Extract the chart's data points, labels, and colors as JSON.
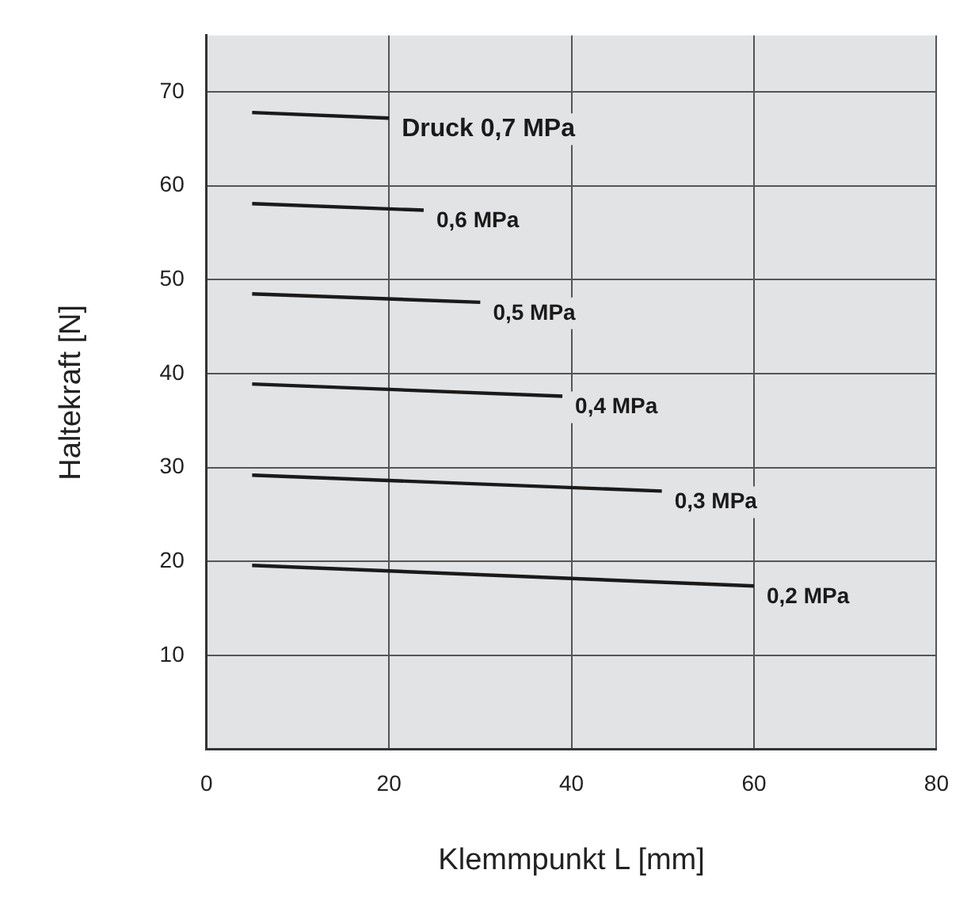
{
  "chart_data": {
    "type": "line",
    "xlabel": "Klemmpunkt L [mm]",
    "ylabel": "Haltekraft [N]",
    "xlim": [
      0,
      80
    ],
    "xticks": [
      0,
      20,
      40,
      60,
      80
    ],
    "ylim": [
      0,
      76
    ],
    "yticks": [
      10,
      20,
      30,
      40,
      50,
      60,
      70
    ],
    "grid": true,
    "legend": false,
    "marker": "none",
    "line_style": "solid",
    "series": [
      {
        "name": "Druck 0,7 MPa",
        "color": "#1a1a1a",
        "x": [
          5,
          20
        ],
        "values": [
          67.8,
          67.2
        ]
      },
      {
        "name": "0,6 MPa",
        "color": "#1a1a1a",
        "x": [
          5,
          23.8
        ],
        "values": [
          58.1,
          57.4
        ]
      },
      {
        "name": "0,5 MPa",
        "color": "#1a1a1a",
        "x": [
          5,
          30
        ],
        "values": [
          48.5,
          47.6
        ]
      },
      {
        "name": "0,4 MPa",
        "color": "#1a1a1a",
        "x": [
          5,
          39
        ],
        "values": [
          38.9,
          37.6
        ]
      },
      {
        "name": "0,3 MPa",
        "color": "#1a1a1a",
        "x": [
          5,
          49.9
        ],
        "values": [
          29.2,
          27.5
        ]
      },
      {
        "name": "0,2 MPa",
        "color": "#1a1a1a",
        "x": [
          5,
          60
        ],
        "values": [
          19.6,
          17.4
        ]
      }
    ]
  }
}
